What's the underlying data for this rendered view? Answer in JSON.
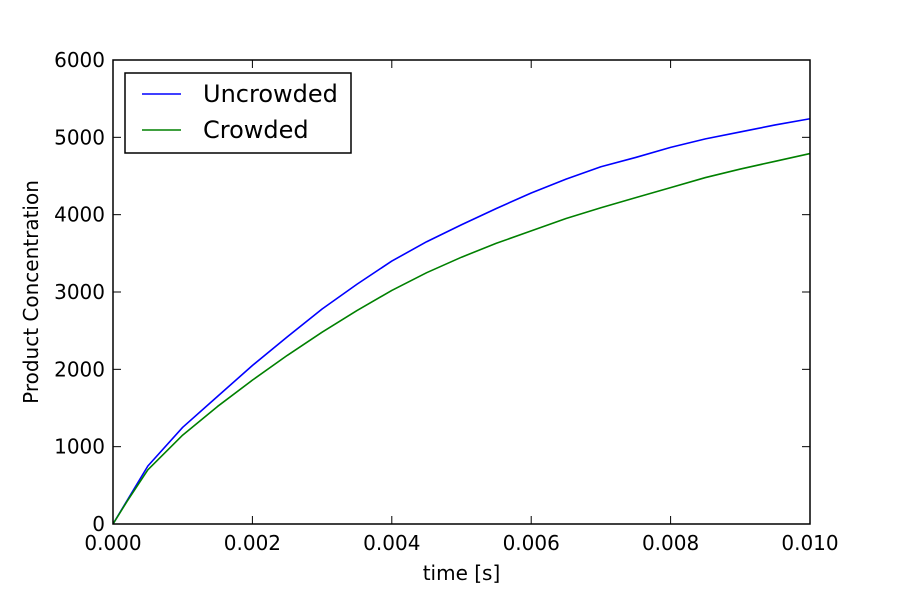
{
  "chart_data": {
    "type": "line",
    "title": "",
    "xlabel": "time [s]",
    "ylabel": "Product Concentration",
    "xlim": [
      0.0,
      0.01
    ],
    "ylim": [
      0,
      6000
    ],
    "xticks": [
      "0.000",
      "0.002",
      "0.004",
      "0.006",
      "0.008",
      "0.010"
    ],
    "yticks": [
      "0",
      "1000",
      "2000",
      "3000",
      "4000",
      "5000",
      "6000"
    ],
    "grid": false,
    "legend_position": "top-left",
    "series": [
      {
        "name": "Uncrowded",
        "color": "#0000ff",
        "x": [
          0.0,
          0.0002,
          0.0005,
          0.001,
          0.0015,
          0.002,
          0.0025,
          0.003,
          0.0035,
          0.004,
          0.0045,
          0.005,
          0.0055,
          0.006,
          0.0065,
          0.007,
          0.0075,
          0.008,
          0.0085,
          0.009,
          0.0095,
          0.01
        ],
        "y": [
          0,
          300,
          750,
          1250,
          1650,
          2050,
          2420,
          2780,
          3100,
          3400,
          3650,
          3870,
          4080,
          4280,
          4460,
          4620,
          4740,
          4870,
          4980,
          5070,
          5160,
          5240
        ]
      },
      {
        "name": "Crowded",
        "color": "#008000",
        "x": [
          0.0,
          0.0002,
          0.0005,
          0.001,
          0.0015,
          0.002,
          0.0025,
          0.003,
          0.0035,
          0.004,
          0.0045,
          0.005,
          0.0055,
          0.006,
          0.0065,
          0.007,
          0.0075,
          0.008,
          0.0085,
          0.009,
          0.0095,
          0.01
        ],
        "y": [
          0,
          290,
          700,
          1150,
          1520,
          1860,
          2180,
          2480,
          2760,
          3020,
          3250,
          3450,
          3630,
          3790,
          3950,
          4090,
          4220,
          4350,
          4480,
          4590,
          4690,
          4790
        ]
      }
    ]
  }
}
